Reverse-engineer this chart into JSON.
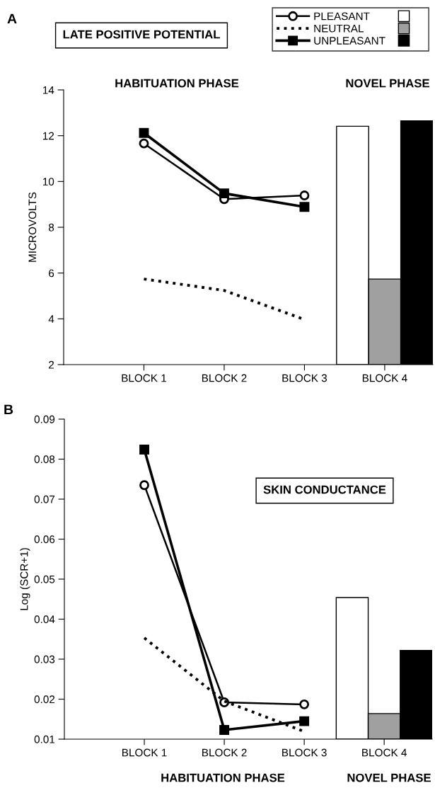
{
  "chart_data": [
    {
      "type": "line",
      "title": "LATE POSITIVE POTENTIAL",
      "ylabel": "MICROVOLTS",
      "annotations": [
        "A",
        "HABITUATION PHASE",
        "NOVEL PHASE"
      ],
      "categories": [
        "BLOCK 1",
        "BLOCK 2",
        "BLOCK 3",
        "BLOCK 4"
      ],
      "ylim": [
        2,
        14
      ],
      "yticks": [
        2,
        4,
        6,
        8,
        10,
        12,
        14
      ],
      "grid": false,
      "legend": "top right",
      "series": [
        {
          "name": "PLEASANT",
          "color": "#000000",
          "marker": "circle",
          "line_style": "solid",
          "values": [
            11.66,
            9.23,
            9.39,
            null
          ]
        },
        {
          "name": "NEUTRAL",
          "color": "#000000",
          "marker": "none",
          "line_style": "dotted",
          "values": [
            5.74,
            5.24,
            3.97,
            null
          ]
        },
        {
          "name": "UNPLEASANT",
          "color": "#000000",
          "marker": "square",
          "line_style": "solid",
          "values": [
            12.12,
            9.48,
            8.89,
            null
          ]
        },
        {
          "type": "bar",
          "color": "#ffffff",
          "values": [
            null,
            null,
            null,
            12.41
          ]
        },
        {
          "type": "bar",
          "color": "#a0a0a0",
          "values": [
            null,
            null,
            null,
            5.74
          ]
        },
        {
          "type": "bar",
          "color": "#000000",
          "values": [
            null,
            null,
            null,
            12.65
          ]
        }
      ]
    },
    {
      "type": "line",
      "title": "SKIN CONDUCTANCE",
      "ylabel": "Log (SCR+1)",
      "annotations": [
        "B",
        "HABITUATION PHASE",
        "NOVEL PHASE"
      ],
      "categories": [
        "BLOCK 1",
        "BLOCK 2",
        "BLOCK 3",
        "BLOCK 4"
      ],
      "ylim": [
        0.01,
        0.09
      ],
      "yticks": [
        0.01,
        0.02,
        0.03,
        0.04,
        0.05,
        0.06,
        0.07,
        0.08,
        0.09
      ],
      "grid": false,
      "series": [
        {
          "color": "#000000",
          "marker": "circle",
          "line_style": "solid",
          "values": [
            0.0735,
            0.0192,
            0.0187,
            null
          ]
        },
        {
          "color": "#000000",
          "marker": "none",
          "line_style": "dotted",
          "values": [
            0.0353,
            0.0195,
            0.0119,
            null
          ]
        },
        {
          "color": "#000000",
          "marker": "square",
          "line_style": "solid",
          "values": [
            0.0824,
            0.0123,
            0.0145,
            null
          ]
        },
        {
          "type": "bar",
          "color": "#ffffff",
          "values": [
            null,
            null,
            null,
            0.0454
          ]
        },
        {
          "type": "bar",
          "color": "#a0a0a0",
          "values": [
            null,
            null,
            null,
            0.0164
          ]
        },
        {
          "type": "bar",
          "color": "#000000",
          "values": [
            null,
            null,
            null,
            0.0322
          ]
        }
      ]
    }
  ]
}
